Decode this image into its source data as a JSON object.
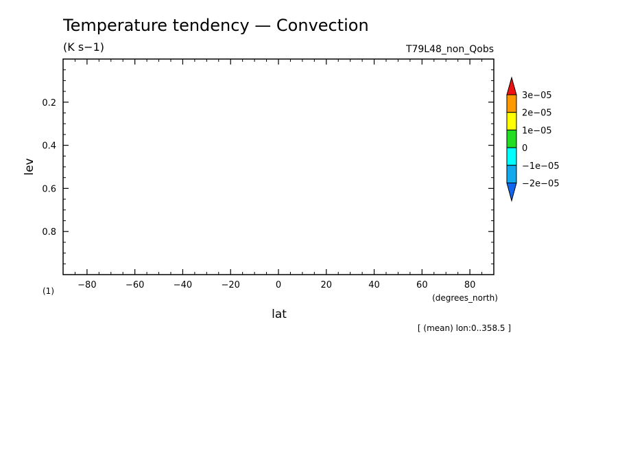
{
  "chart_data": {
    "type": "heatmap",
    "title": "Temperature tendency — Convection",
    "units": "(K s−1)",
    "experiment": "T79L48_non_Qobs",
    "xlabel": "lat",
    "x_units": "(degrees_north)",
    "ylabel": "lev",
    "y_units": "(1)",
    "xlim": [
      -90,
      90
    ],
    "ylim": [
      1.0,
      0.0
    ],
    "y_display_top": 0.0,
    "y_display_bottom": 1.0,
    "x_ticks": [
      -80,
      -60,
      -40,
      -20,
      0,
      20,
      40,
      60,
      80
    ],
    "x_tick_labels": [
      "−80",
      "−60",
      "−40",
      "−20",
      "0",
      "20",
      "40",
      "60",
      "80"
    ],
    "y_ticks": [
      0.2,
      0.4,
      0.6,
      0.8
    ],
    "y_tick_labels": [
      "0.2",
      "0.4",
      "0.6",
      "0.8"
    ],
    "data": [],
    "colorbar": {
      "levels": [
        "3e−05",
        "2e−05",
        "1e−05",
        "0",
        "−1e−05",
        "−2e−05"
      ],
      "level_values": [
        3e-05,
        2e-05,
        1e-05,
        0,
        -1e-05,
        -2e-05
      ],
      "colors": [
        "#ee1111",
        "#ff9900",
        "#ffff00",
        "#22dd22",
        "#00ffff",
        "#11aaee",
        "#1166ee"
      ]
    },
    "footnote": "[ (mean) lon:0..358.5 ]"
  }
}
